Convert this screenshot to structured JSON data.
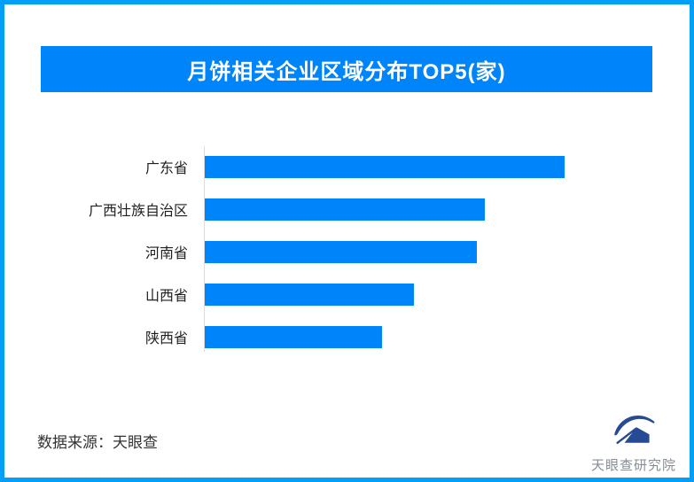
{
  "frame": {
    "border_color": "#00a0f8",
    "background_color": "#ffffff"
  },
  "header": {
    "title": "月饼相关企业区域分布TOP5(家)",
    "background_color": "#0084fa",
    "text_color": "#ffffff"
  },
  "chart_data": {
    "type": "bar",
    "orientation": "horizontal",
    "title": "月饼相关企业区域分布TOP5(家)",
    "categories": [
      "广东省",
      "广西壮族自治区",
      "河南省",
      "山西省",
      "陕西省"
    ],
    "values": [
      406,
      316,
      307,
      236,
      200
    ],
    "values_note": "no numeric data labels, ticks or gridlines are shown in the image; values are measured bar lengths in pixels (relative magnitudes only)",
    "relative_to_max": [
      1.0,
      0.78,
      0.76,
      0.58,
      0.49
    ],
    "bar_color": "#0084fa",
    "axis_line_color": "#dcdcdc",
    "label_color": "#1f1f1f",
    "xlabel": "",
    "ylabel": "",
    "grid": false,
    "legend": false,
    "data_labels": false
  },
  "footer": {
    "source_label": "数据来源：天眼查",
    "logo_text": "天眼查研究院",
    "logo_color": "#274a94"
  },
  "icons": {
    "logo_mark": "tianyancha-eye-swoosh-icon"
  }
}
